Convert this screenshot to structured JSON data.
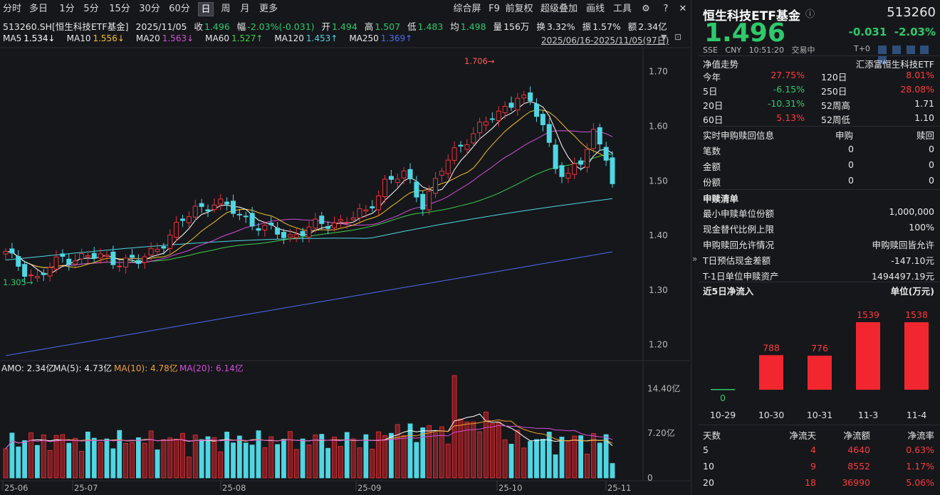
{
  "toolbar": {
    "left": [
      {
        "label": "分时"
      },
      {
        "label": "多日"
      },
      {
        "label": "1分"
      },
      {
        "label": "5分"
      },
      {
        "label": "15分"
      },
      {
        "label": "30分"
      },
      {
        "label": "60分"
      },
      {
        "label": "日"
      },
      {
        "label": "周"
      },
      {
        "label": "月"
      },
      {
        "label": "更多"
      }
    ],
    "active": "日",
    "right": [
      {
        "label": "综合屏"
      },
      {
        "label": "F9"
      },
      {
        "label": "前复权"
      },
      {
        "label": "超级叠加"
      },
      {
        "label": "画线"
      },
      {
        "label": "工具"
      }
    ]
  },
  "info": {
    "symbol": "513260.SH[恒生科技ETF基金]",
    "date": "2025/11/05",
    "close_label": "收",
    "close": "1.496",
    "chg_label": "幅",
    "chg": "-2.03%(-0.031)",
    "open_label": "开",
    "open": "1.494",
    "high_label": "高",
    "high": "1.507",
    "low_label": "低",
    "low": "1.483",
    "avg_label": "均",
    "avg": "1.498",
    "vol_label": "量",
    "vol": "156万",
    "turn_label": "换",
    "turn": "3.32%",
    "amp_label": "振",
    "amp": "1.57%",
    "amt_label": "额",
    "amt": "2.34亿"
  },
  "ma": [
    {
      "label": "MA5",
      "value": "1.534↓",
      "color": "#ffffff"
    },
    {
      "label": "MA10",
      "value": "1.556↓",
      "color": "#f2c12e"
    },
    {
      "label": "MA20",
      "value": "1.563↓",
      "color": "#d24fd8"
    },
    {
      "label": "MA60",
      "value": "1.527↑",
      "color": "#3ecf4a"
    },
    {
      "label": "MA120",
      "value": "1.453↑",
      "color": "#4fd6e3"
    },
    {
      "label": "MA250",
      "value": "1.369↑",
      "color": "#4c6cf0"
    }
  ],
  "range": "2025/06/16-2025/11/05(97日)",
  "price_axis": [
    "1.70",
    "1.60",
    "1.50",
    "1.40",
    "1.30",
    "1.20"
  ],
  "annotations": {
    "high": "1.706",
    "low": "1.305"
  },
  "vol_info": {
    "amo": "AMO: 2.34亿",
    "ma5": "MA(5): 4.73亿",
    "ma10": "MA(10): 4.78亿",
    "ma20": "MA(20): 6.14亿"
  },
  "vol_axis": [
    "14.40亿",
    "7.20亿",
    "0"
  ],
  "x_labels": [
    "25-06",
    "25-07",
    "25-08",
    "25-09",
    "25-10",
    "25-11"
  ],
  "chart_data": {
    "type": "candlestick",
    "y_range": [
      1.18,
      1.74
    ],
    "dates_range": "2025/06/16-2025/11/05",
    "series_count": 97,
    "last": {
      "open": 1.494,
      "high": 1.507,
      "low": 1.483,
      "close": 1.496
    }
  },
  "right": {
    "title": "恒生科技ETF基金",
    "code": "513260",
    "price": "1.496",
    "chg": "-0.031",
    "chg_pct": "-2.03%",
    "meta": {
      "market": "SSE",
      "cur": "CNY",
      "time": "10:51:20",
      "status": "交易中",
      "t0": "T+0"
    },
    "nav_title": "净值走势",
    "nav_fund": "汇添富恒生科技ETF",
    "stats": [
      [
        "今年",
        "27.75%",
        "120日",
        "8.01%"
      ],
      [
        "5日",
        "-6.15%",
        "250日",
        "28.08%"
      ],
      [
        "20日",
        "-10.31%",
        "52周高",
        "1.71"
      ],
      [
        "60日",
        "5.13%",
        "52周低",
        "1.10"
      ]
    ],
    "sub_title": "实时申购赎回信息",
    "sub_head": [
      "申购",
      "赎回"
    ],
    "sub_rows": [
      [
        "笔数",
        "0",
        "0"
      ],
      [
        "金额",
        "0",
        "0"
      ],
      [
        "份额",
        "0",
        "0"
      ]
    ],
    "list_title": "申赎清单",
    "list_rows": [
      [
        "最小申赎单位份额",
        "1,000,000"
      ],
      [
        "现金替代比例上限",
        "100%"
      ],
      [
        "申购赎回允许情况",
        "申购赎回皆允许"
      ],
      [
        "T日预估现金差额",
        "-147.10元"
      ],
      [
        "T-1日单位申赎资产",
        "1494497.19元"
      ]
    ],
    "flow_title": "近5日净流入",
    "flow_unit": "单位(万元)",
    "flow": {
      "dates": [
        "10-29",
        "10-30",
        "10-31",
        "11-3",
        "11-4"
      ],
      "values": [
        0,
        788,
        776,
        1539,
        1538
      ]
    },
    "flow_table_head": [
      "天数",
      "净流天",
      "净流额",
      "净流率"
    ],
    "flow_table": [
      [
        "5",
        "4",
        "4640",
        "0.63%"
      ],
      [
        "10",
        "9",
        "8552",
        "1.17%"
      ],
      [
        "20",
        "18",
        "36990",
        "5.06%"
      ]
    ]
  }
}
